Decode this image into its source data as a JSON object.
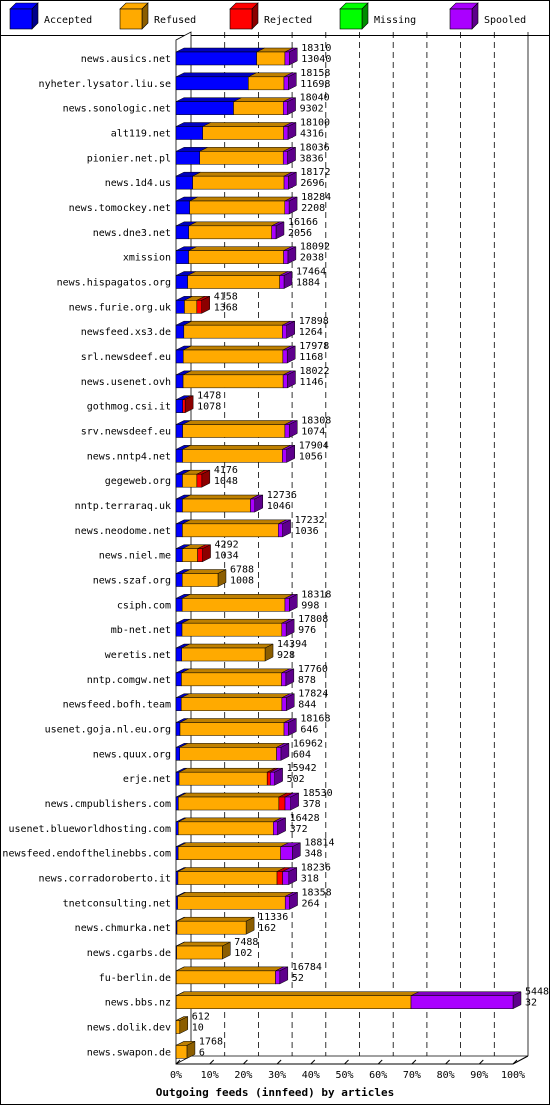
{
  "chart_data": {
    "type": "bar",
    "orientation": "horizontal",
    "stacked": true,
    "title": "Outgoing feeds (innfeed) by articles",
    "legend_position": "top",
    "grid": true,
    "xlim": [
      0,
      100
    ],
    "x_ticks": [
      "0%",
      "10%",
      "20%",
      "30%",
      "40%",
      "50%",
      "60%",
      "70%",
      "80%",
      "90%",
      "100%"
    ],
    "legend": [
      {
        "name": "Accepted",
        "color": "#0000ff"
      },
      {
        "name": "Refused",
        "color": "#ffaa00"
      },
      {
        "name": "Rejected",
        "color": "#ff0000"
      },
      {
        "name": "Missing",
        "color": "#00ff00"
      },
      {
        "name": "Spooled",
        "color": "#aa00ff"
      }
    ],
    "scale_max": 54488,
    "rows": [
      {
        "host": "news.ausics.net",
        "total": "18310",
        "accepted_label": "13040",
        "accepted": 13040,
        "refused": 4570,
        "rejected": 0,
        "spooled": 700
      },
      {
        "host": "nyheter.lysator.liu.se",
        "total": "18158",
        "accepted_label": "11698",
        "accepted": 11698,
        "refused": 5760,
        "rejected": 0,
        "spooled": 700
      },
      {
        "host": "news.sonologic.net",
        "total": "18040",
        "accepted_label": "9302",
        "accepted": 9302,
        "refused": 8038,
        "rejected": 0,
        "spooled": 700
      },
      {
        "host": "alt119.net",
        "total": "18100",
        "accepted_label": "4316",
        "accepted": 4316,
        "refused": 13084,
        "rejected": 0,
        "spooled": 700
      },
      {
        "host": "pionier.net.pl",
        "total": "18036",
        "accepted_label": "3836",
        "accepted": 3836,
        "refused": 13500,
        "rejected": 0,
        "spooled": 700
      },
      {
        "host": "news.1d4.us",
        "total": "18172",
        "accepted_label": "2696",
        "accepted": 2696,
        "refused": 14776,
        "rejected": 0,
        "spooled": 700
      },
      {
        "host": "news.tomockey.net",
        "total": "18284",
        "accepted_label": "2208",
        "accepted": 2208,
        "refused": 15376,
        "rejected": 0,
        "spooled": 700
      },
      {
        "host": "news.dne3.net",
        "total": "16166",
        "accepted_label": "2056",
        "accepted": 2056,
        "refused": 13410,
        "rejected": 0,
        "spooled": 700
      },
      {
        "host": "xmission",
        "total": "18092",
        "accepted_label": "2038",
        "accepted": 2038,
        "refused": 15354,
        "rejected": 0,
        "spooled": 700
      },
      {
        "host": "news.hispagatos.org",
        "total": "17464",
        "accepted_label": "1884",
        "accepted": 1884,
        "refused": 14880,
        "rejected": 0,
        "spooled": 700
      },
      {
        "host": "news.furie.org.uk",
        "total": "4158",
        "accepted_label": "1368",
        "accepted": 1368,
        "refused": 2000,
        "rejected": 790,
        "spooled": 0
      },
      {
        "host": "newsfeed.xs3.de",
        "total": "17898",
        "accepted_label": "1264",
        "accepted": 1264,
        "refused": 15934,
        "rejected": 0,
        "spooled": 700
      },
      {
        "host": "srl.newsdeef.eu",
        "total": "17978",
        "accepted_label": "1168",
        "accepted": 1168,
        "refused": 16110,
        "rejected": 0,
        "spooled": 700
      },
      {
        "host": "news.usenet.ovh",
        "total": "18022",
        "accepted_label": "1146",
        "accepted": 1146,
        "refused": 16176,
        "rejected": 0,
        "spooled": 700
      },
      {
        "host": "gothmog.csi.it",
        "total": "1478",
        "accepted_label": "1078",
        "accepted": 1078,
        "refused": 0,
        "rejected": 400,
        "spooled": 0
      },
      {
        "host": "srv.newsdeef.eu",
        "total": "18308",
        "accepted_label": "1074",
        "accepted": 1074,
        "refused": 16534,
        "rejected": 0,
        "spooled": 700
      },
      {
        "host": "news.nntp4.net",
        "total": "17904",
        "accepted_label": "1056",
        "accepted": 1056,
        "refused": 16148,
        "rejected": 0,
        "spooled": 700
      },
      {
        "host": "gegeweb.org",
        "total": "4176",
        "accepted_label": "1048",
        "accepted": 1048,
        "refused": 2328,
        "rejected": 800,
        "spooled": 0
      },
      {
        "host": "nntp.terraraq.uk",
        "total": "12736",
        "accepted_label": "1046",
        "accepted": 1046,
        "refused": 10990,
        "rejected": 0,
        "spooled": 700
      },
      {
        "host": "news.neodome.net",
        "total": "17232",
        "accepted_label": "1036",
        "accepted": 1036,
        "refused": 15496,
        "rejected": 0,
        "spooled": 700
      },
      {
        "host": "news.niel.me",
        "total": "4292",
        "accepted_label": "1034",
        "accepted": 1034,
        "refused": 2458,
        "rejected": 800,
        "spooled": 0
      },
      {
        "host": "news.szaf.org",
        "total": "6788",
        "accepted_label": "1008",
        "accepted": 1008,
        "refused": 5780,
        "rejected": 0,
        "spooled": 0
      },
      {
        "host": "csiph.com",
        "total": "18318",
        "accepted_label": "998",
        "accepted": 998,
        "refused": 16620,
        "rejected": 0,
        "spooled": 700
      },
      {
        "host": "mb-net.net",
        "total": "17808",
        "accepted_label": "976",
        "accepted": 976,
        "refused": 16132,
        "rejected": 0,
        "spooled": 700
      },
      {
        "host": "weretis.net",
        "total": "14394",
        "accepted_label": "928",
        "accepted": 928,
        "refused": 13466,
        "rejected": 0,
        "spooled": 0
      },
      {
        "host": "nntp.comgw.net",
        "total": "17760",
        "accepted_label": "878",
        "accepted": 878,
        "refused": 16182,
        "rejected": 0,
        "spooled": 700
      },
      {
        "host": "newsfeed.bofh.team",
        "total": "17824",
        "accepted_label": "844",
        "accepted": 844,
        "refused": 16280,
        "rejected": 0,
        "spooled": 700
      },
      {
        "host": "usenet.goja.nl.eu.org",
        "total": "18168",
        "accepted_label": "646",
        "accepted": 646,
        "refused": 16822,
        "rejected": 0,
        "spooled": 700
      },
      {
        "host": "news.quux.org",
        "total": "16962",
        "accepted_label": "604",
        "accepted": 604,
        "refused": 15658,
        "rejected": 0,
        "spooled": 700
      },
      {
        "host": "erje.net",
        "total": "15942",
        "accepted_label": "502",
        "accepted": 502,
        "refused": 14240,
        "rejected": 500,
        "spooled": 700
      },
      {
        "host": "news.cmpublishers.com",
        "total": "18530",
        "accepted_label": "378",
        "accepted": 378,
        "refused": 16252,
        "rejected": 1000,
        "spooled": 900
      },
      {
        "host": "usenet.blueworldhosting.com",
        "total": "16428",
        "accepted_label": "372",
        "accepted": 372,
        "refused": 15356,
        "rejected": 0,
        "spooled": 700
      },
      {
        "host": "newsfeed.endofthelinebbs.com",
        "total": "18814",
        "accepted_label": "348",
        "accepted": 348,
        "refused": 16566,
        "rejected": 0,
        "spooled": 1900
      },
      {
        "host": "news.corradoroberto.it",
        "total": "18236",
        "accepted_label": "318",
        "accepted": 318,
        "refused": 16018,
        "rejected": 900,
        "spooled": 1000
      },
      {
        "host": "tnetconsulting.net",
        "total": "18358",
        "accepted_label": "264",
        "accepted": 264,
        "refused": 17394,
        "rejected": 0,
        "spooled": 700
      },
      {
        "host": "news.chmurka.net",
        "total": "11336",
        "accepted_label": "162",
        "accepted": 162,
        "refused": 11174,
        "rejected": 0,
        "spooled": 0
      },
      {
        "host": "news.cgarbs.de",
        "total": "7488",
        "accepted_label": "102",
        "accepted": 102,
        "refused": 7386,
        "rejected": 0,
        "spooled": 0
      },
      {
        "host": "fu-berlin.de",
        "total": "16784",
        "accepted_label": "52",
        "accepted": 52,
        "refused": 16032,
        "rejected": 0,
        "spooled": 700
      },
      {
        "host": "news.bbs.nz",
        "total": "54488",
        "accepted_label": "32",
        "accepted": 32,
        "refused": 37968,
        "rejected": 0,
        "spooled": 16488
      },
      {
        "host": "news.dolik.dev",
        "total": "612",
        "accepted_label": "10",
        "accepted": 10,
        "refused": 602,
        "rejected": 0,
        "spooled": 0
      },
      {
        "host": "news.swapon.de",
        "total": "1768",
        "accepted_label": "6",
        "accepted": 6,
        "refused": 1762,
        "rejected": 0,
        "spooled": 0
      }
    ]
  }
}
